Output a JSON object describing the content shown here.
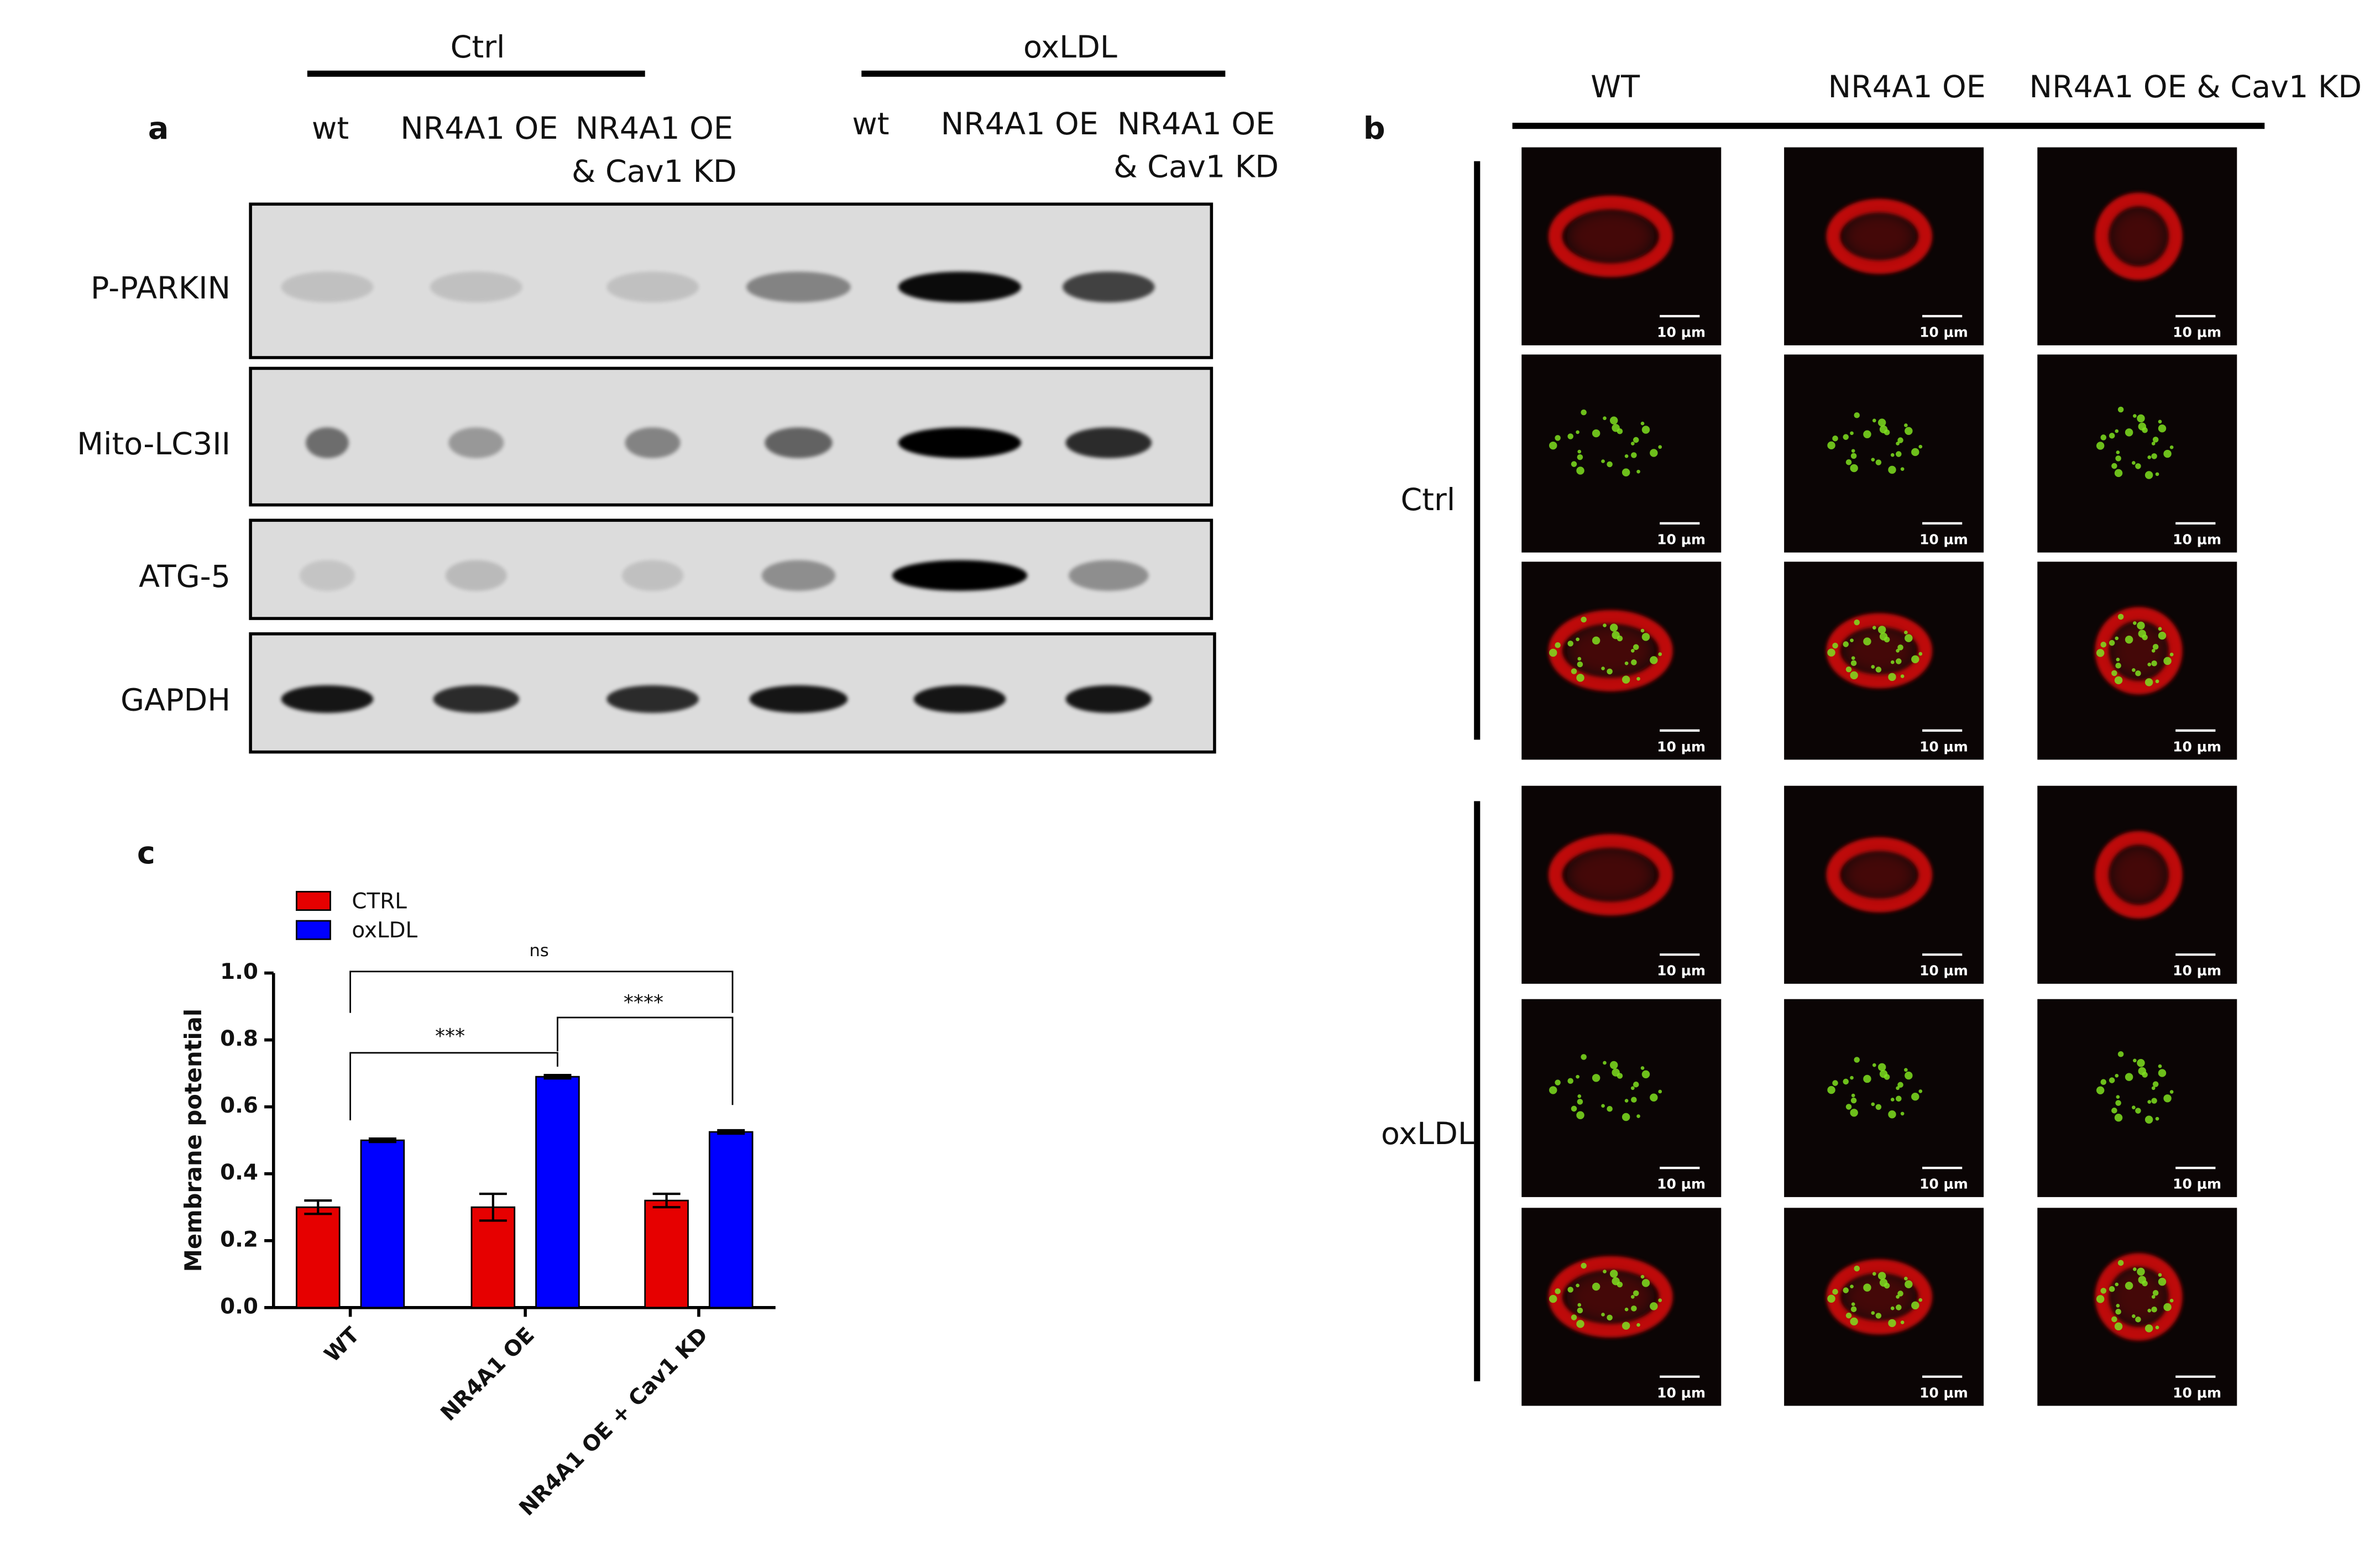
{
  "panel_a": {
    "label": "a",
    "groups": [
      "Ctrl",
      "oxLDL"
    ],
    "lanes": [
      [
        "wt"
      ],
      [
        "NR4A1 OE"
      ],
      [
        "NR4A1 OE",
        "& Cav1 KD"
      ],
      [
        "wt"
      ],
      [
        "NR4A1 OE"
      ],
      [
        "NR4A1 OE",
        "& Cav1 KD"
      ]
    ],
    "rows": [
      "P-PARKIN",
      "Mito-LC3II",
      "ATG-5",
      "GAPDH"
    ]
  },
  "panel_b": {
    "label": "b",
    "columns": [
      "WT",
      "NR4A1 OE",
      "NR4A1 OE & Cav1 KD"
    ],
    "rows": [
      "Ctrl",
      "oxLDL"
    ],
    "scale_bar": "10 μm"
  },
  "chart_data": {
    "type": "bar",
    "label": "c",
    "y_label": "Membrane potential",
    "categories": [
      "WT",
      "NR4A1 OE",
      "NR4A1 OE + Cav1 KD"
    ],
    "series": [
      {
        "name": "CTRL",
        "color": "#e60000",
        "values": [
          0.3,
          0.3,
          0.32
        ],
        "errors": [
          0.02,
          0.04,
          0.02
        ]
      },
      {
        "name": "oxLDL",
        "color": "#0000ff",
        "values": [
          0.5,
          0.69,
          0.525
        ],
        "errors": [
          0.005,
          0.005,
          0.005
        ]
      }
    ],
    "ylim": [
      0,
      1.0
    ],
    "yticks": [
      {
        "value": 0,
        "label": "0.0"
      },
      0.2,
      0.4,
      0.6,
      0.8,
      {
        "value": 1,
        "label": "1.0"
      }
    ],
    "comparisons": [
      "ns",
      "***",
      "****"
    ]
  }
}
